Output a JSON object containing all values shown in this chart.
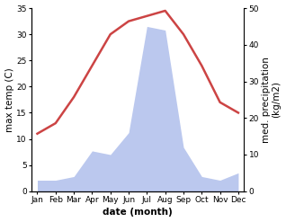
{
  "months": [
    "Jan",
    "Feb",
    "Mar",
    "Apr",
    "May",
    "Jun",
    "Jul",
    "Aug",
    "Sep",
    "Oct",
    "Nov",
    "Dec"
  ],
  "temp": [
    11,
    13,
    18,
    24,
    30,
    32.5,
    33.5,
    34.5,
    30,
    24,
    17,
    15
  ],
  "precip": [
    3,
    3,
    4,
    11,
    10,
    16,
    45,
    44,
    12,
    4,
    3,
    5
  ],
  "temp_color": "#cc4444",
  "precip_fill_color": "#bbc8ee",
  "temp_ylim": [
    0,
    35
  ],
  "precip_ylim": [
    0,
    50
  ],
  "temp_yticks": [
    0,
    5,
    10,
    15,
    20,
    25,
    30,
    35
  ],
  "precip_yticks": [
    0,
    10,
    20,
    30,
    40,
    50
  ],
  "ylabel_left": "max temp (C)",
  "ylabel_right": "med. precipitation\n(kg/m2)",
  "xlabel": "date (month)",
  "bg_color": "#ffffff",
  "line_width": 1.8,
  "font_size_label": 7.5,
  "font_size_tick": 6.5
}
